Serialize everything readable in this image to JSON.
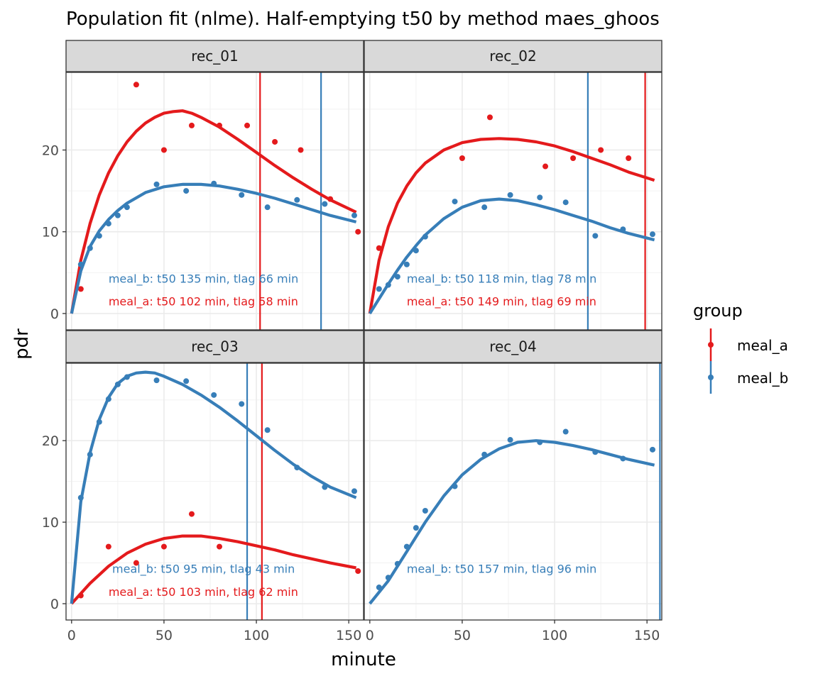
{
  "chart_data": {
    "type": "scatter",
    "title": "Population fit (nlme). Half-emptying t50 by method maes_ghoos",
    "xlabel": "minute",
    "ylabel": "pdr",
    "xlim": [
      -3,
      158
    ],
    "ylim": [
      -2,
      29.5
    ],
    "x_ticks": [
      0,
      50,
      100,
      150
    ],
    "y_ticks": [
      0,
      10,
      20
    ],
    "grid": true,
    "legend": {
      "title": "group",
      "position": "right",
      "entries": [
        {
          "name": "meal_a",
          "color": "#E41A1C"
        },
        {
          "name": "meal_b",
          "color": "#377EB8"
        }
      ]
    },
    "panels": [
      {
        "name": "rec_01",
        "vlines": [
          {
            "series": "meal_a",
            "x": 102
          },
          {
            "series": "meal_b",
            "x": 135
          }
        ],
        "annotations": [
          {
            "series": "meal_b",
            "text": "meal_b: t50 135 min, tlag 66 min",
            "x": 20,
            "y": 4.3
          },
          {
            "series": "meal_a",
            "text": "meal_a: t50 102 min, tlag 58 min",
            "x": 20,
            "y": 1.5
          }
        ],
        "series": [
          {
            "name": "meal_a",
            "points": [
              [
                5,
                3
              ],
              [
                35,
                28
              ],
              [
                50,
                20
              ],
              [
                65,
                23
              ],
              [
                80,
                23
              ],
              [
                95,
                23
              ],
              [
                110,
                21
              ],
              [
                124,
                20
              ],
              [
                140,
                14
              ],
              [
                155,
                10
              ]
            ],
            "fit": [
              [
                0,
                0
              ],
              [
                5,
                6.5
              ],
              [
                10,
                11
              ],
              [
                15,
                14.5
              ],
              [
                20,
                17.2
              ],
              [
                25,
                19.3
              ],
              [
                30,
                21
              ],
              [
                35,
                22.3
              ],
              [
                40,
                23.3
              ],
              [
                45,
                24
              ],
              [
                50,
                24.5
              ],
              [
                55,
                24.7
              ],
              [
                60,
                24.8
              ],
              [
                65,
                24.5
              ],
              [
                70,
                24
              ],
              [
                80,
                22.8
              ],
              [
                90,
                21.3
              ],
              [
                100,
                19.7
              ],
              [
                110,
                18.1
              ],
              [
                120,
                16.6
              ],
              [
                130,
                15.2
              ],
              [
                140,
                13.9
              ],
              [
                154,
                12.4
              ]
            ]
          },
          {
            "name": "meal_b",
            "points": [
              [
                5,
                6
              ],
              [
                10,
                8
              ],
              [
                15,
                9.5
              ],
              [
                20,
                11
              ],
              [
                25,
                12
              ],
              [
                30,
                13
              ],
              [
                46,
                15.8
              ],
              [
                62,
                15
              ],
              [
                77,
                15.9
              ],
              [
                92,
                14.5
              ],
              [
                106,
                13
              ],
              [
                122,
                13.9
              ],
              [
                137,
                13.4
              ],
              [
                153,
                12
              ]
            ],
            "fit": [
              [
                0,
                0
              ],
              [
                5,
                5.2
              ],
              [
                10,
                8.2
              ],
              [
                15,
                10.1
              ],
              [
                20,
                11.5
              ],
              [
                25,
                12.6
              ],
              [
                30,
                13.5
              ],
              [
                40,
                14.8
              ],
              [
                50,
                15.5
              ],
              [
                60,
                15.8
              ],
              [
                70,
                15.8
              ],
              [
                80,
                15.6
              ],
              [
                90,
                15.2
              ],
              [
                100,
                14.7
              ],
              [
                110,
                14.1
              ],
              [
                120,
                13.4
              ],
              [
                130,
                12.7
              ],
              [
                140,
                12
              ],
              [
                154,
                11.2
              ]
            ]
          }
        ]
      },
      {
        "name": "rec_02",
        "vlines": [
          {
            "series": "meal_a",
            "x": 149
          },
          {
            "series": "meal_b",
            "x": 118
          }
        ],
        "annotations": [
          {
            "series": "meal_b",
            "text": "meal_b: t50 118 min, tlag 78 min",
            "x": 20,
            "y": 4.3
          },
          {
            "series": "meal_a",
            "text": "meal_a: t50 149 min, tlag 69 min",
            "x": 20,
            "y": 1.5
          }
        ],
        "series": [
          {
            "name": "meal_a",
            "points": [
              [
                5,
                8
              ],
              [
                50,
                19
              ],
              [
                65,
                24
              ],
              [
                95,
                18
              ],
              [
                110,
                19
              ],
              [
                125,
                20
              ],
              [
                140,
                19
              ]
            ],
            "fit": [
              [
                0,
                0
              ],
              [
                5,
                6.5
              ],
              [
                10,
                10.6
              ],
              [
                15,
                13.5
              ],
              [
                20,
                15.6
              ],
              [
                25,
                17.2
              ],
              [
                30,
                18.4
              ],
              [
                40,
                20
              ],
              [
                50,
                20.9
              ],
              [
                60,
                21.3
              ],
              [
                70,
                21.4
              ],
              [
                80,
                21.3
              ],
              [
                90,
                21
              ],
              [
                100,
                20.5
              ],
              [
                110,
                19.8
              ],
              [
                120,
                19
              ],
              [
                130,
                18.2
              ],
              [
                140,
                17.3
              ],
              [
                154,
                16.3
              ]
            ]
          },
          {
            "name": "meal_b",
            "points": [
              [
                5,
                3
              ],
              [
                10,
                3.5
              ],
              [
                15,
                4.5
              ],
              [
                20,
                6
              ],
              [
                25,
                7.7
              ],
              [
                30,
                9.4
              ],
              [
                46,
                13.7
              ],
              [
                62,
                13
              ],
              [
                76,
                14.5
              ],
              [
                92,
                14.2
              ],
              [
                106,
                13.6
              ],
              [
                122,
                9.5
              ],
              [
                137,
                10.3
              ],
              [
                153,
                9.7
              ]
            ],
            "fit": [
              [
                0,
                0
              ],
              [
                5,
                1.8
              ],
              [
                10,
                3.6
              ],
              [
                15,
                5.3
              ],
              [
                20,
                6.9
              ],
              [
                25,
                8.3
              ],
              [
                30,
                9.6
              ],
              [
                40,
                11.6
              ],
              [
                50,
                13
              ],
              [
                60,
                13.8
              ],
              [
                70,
                14
              ],
              [
                80,
                13.8
              ],
              [
                90,
                13.3
              ],
              [
                100,
                12.7
              ],
              [
                110,
                12
              ],
              [
                120,
                11.3
              ],
              [
                130,
                10.5
              ],
              [
                140,
                9.8
              ],
              [
                154,
                9
              ]
            ]
          }
        ]
      },
      {
        "name": "rec_03",
        "vlines": [
          {
            "series": "meal_a",
            "x": 103
          },
          {
            "series": "meal_b",
            "x": 95
          }
        ],
        "annotations": [
          {
            "series": "meal_b",
            "text": "meal_b: t50 95 min, tlag 43 min",
            "x": 22,
            "y": 4.3
          },
          {
            "series": "meal_a",
            "text": "meal_a: t50 103 min, tlag 62 min",
            "x": 20,
            "y": 1.5
          }
        ],
        "series": [
          {
            "name": "meal_a",
            "points": [
              [
                5,
                1
              ],
              [
                20,
                7
              ],
              [
                35,
                5
              ],
              [
                50,
                7
              ],
              [
                65,
                11
              ],
              [
                80,
                7
              ],
              [
                155,
                4
              ]
            ],
            "fit": [
              [
                0,
                0
              ],
              [
                10,
                2.5
              ],
              [
                20,
                4.6
              ],
              [
                30,
                6.2
              ],
              [
                40,
                7.3
              ],
              [
                50,
                8
              ],
              [
                60,
                8.3
              ],
              [
                70,
                8.3
              ],
              [
                80,
                8
              ],
              [
                90,
                7.6
              ],
              [
                100,
                7.1
              ],
              [
                110,
                6.6
              ],
              [
                120,
                6
              ],
              [
                130,
                5.5
              ],
              [
                140,
                5
              ],
              [
                154,
                4.4
              ]
            ]
          },
          {
            "name": "meal_b",
            "points": [
              [
                5,
                13
              ],
              [
                10,
                18.3
              ],
              [
                15,
                22.3
              ],
              [
                20,
                25.1
              ],
              [
                25,
                26.9
              ],
              [
                30,
                27.8
              ],
              [
                46,
                27.4
              ],
              [
                62,
                27.3
              ],
              [
                77,
                25.6
              ],
              [
                92,
                24.5
              ],
              [
                106,
                21.3
              ],
              [
                122,
                16.7
              ],
              [
                137,
                14.3
              ],
              [
                153,
                13.8
              ]
            ],
            "fit": [
              [
                0,
                0
              ],
              [
                5,
                12.5
              ],
              [
                10,
                18.5
              ],
              [
                15,
                22.6
              ],
              [
                20,
                25.3
              ],
              [
                25,
                27
              ],
              [
                30,
                27.9
              ],
              [
                35,
                28.3
              ],
              [
                40,
                28.4
              ],
              [
                45,
                28.3
              ],
              [
                50,
                27.9
              ],
              [
                60,
                26.9
              ],
              [
                70,
                25.6
              ],
              [
                80,
                24.1
              ],
              [
                90,
                22.4
              ],
              [
                100,
                20.6
              ],
              [
                110,
                18.8
              ],
              [
                120,
                17.1
              ],
              [
                130,
                15.6
              ],
              [
                140,
                14.3
              ],
              [
                154,
                13
              ]
            ]
          }
        ]
      },
      {
        "name": "rec_04",
        "vlines": [
          {
            "series": "meal_b",
            "x": 157
          }
        ],
        "annotations": [
          {
            "series": "meal_b",
            "text": "meal_b: t50 157 min, tlag 96 min",
            "x": 20,
            "y": 4.3
          }
        ],
        "series": [
          {
            "name": "meal_b",
            "points": [
              [
                5,
                2
              ],
              [
                10,
                3.2
              ],
              [
                15,
                4.9
              ],
              [
                20,
                7
              ],
              [
                25,
                9.3
              ],
              [
                30,
                11.4
              ],
              [
                46,
                14.4
              ],
              [
                62,
                18.3
              ],
              [
                76,
                20.1
              ],
              [
                92,
                19.8
              ],
              [
                106,
                21.1
              ],
              [
                122,
                18.6
              ],
              [
                137,
                17.8
              ],
              [
                153,
                18.9
              ]
            ],
            "fit": [
              [
                0,
                0
              ],
              [
                10,
                2.8
              ],
              [
                20,
                6.4
              ],
              [
                30,
                10
              ],
              [
                40,
                13.2
              ],
              [
                50,
                15.8
              ],
              [
                60,
                17.7
              ],
              [
                70,
                19
              ],
              [
                80,
                19.8
              ],
              [
                90,
                20
              ],
              [
                100,
                19.8
              ],
              [
                110,
                19.4
              ],
              [
                120,
                18.9
              ],
              [
                130,
                18.3
              ],
              [
                140,
                17.7
              ],
              [
                154,
                17
              ]
            ]
          }
        ]
      }
    ]
  }
}
